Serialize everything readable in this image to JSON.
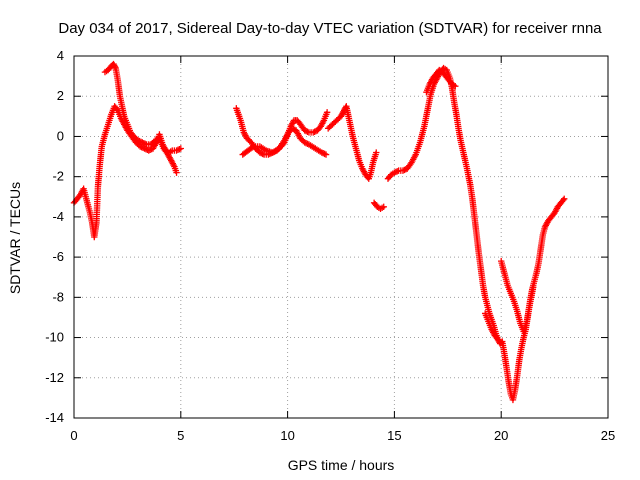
{
  "chart_data": {
    "type": "scatter",
    "title": "Day 034 of 2017, Sidereal Day-to-day VTEC variation (SDTVAR) for receiver rnna",
    "xlabel": "GPS time / hours",
    "ylabel": "SDTVAR / TECUs",
    "xlim": [
      0,
      25
    ],
    "ylim": [
      -14,
      4
    ],
    "xticks": [
      0,
      5,
      10,
      15,
      20,
      25
    ],
    "yticks": [
      -14,
      -12,
      -10,
      -8,
      -6,
      -4,
      -2,
      0,
      2,
      4
    ],
    "grid": true,
    "legend": "none",
    "marker": "plus",
    "color": "#ff0000",
    "series": [
      {
        "segments": [
          [
            [
              0.0,
              -3.3
            ],
            [
              0.15,
              -3.1
            ],
            [
              0.3,
              -2.9
            ],
            [
              0.45,
              -2.6
            ],
            [
              0.6,
              -3.2
            ],
            [
              0.75,
              -3.8
            ],
            [
              0.85,
              -4.3
            ],
            [
              0.95,
              -5.0
            ],
            [
              1.05,
              -4.3
            ],
            [
              1.12,
              -2.5
            ],
            [
              1.2,
              -1.5
            ],
            [
              1.3,
              -0.5
            ],
            [
              1.45,
              0.1
            ],
            [
              1.6,
              0.6
            ],
            [
              1.75,
              1.1
            ],
            [
              1.9,
              1.5
            ],
            [
              2.05,
              1.3
            ],
            [
              2.2,
              0.9
            ],
            [
              2.35,
              0.6
            ],
            [
              2.5,
              0.3
            ],
            [
              2.7,
              0.0
            ],
            [
              2.9,
              -0.3
            ],
            [
              3.1,
              -0.5
            ],
            [
              3.3,
              -0.6
            ],
            [
              3.5,
              -0.7
            ],
            [
              3.7,
              -0.6
            ],
            [
              3.9,
              -0.2
            ],
            [
              4.0,
              0.1
            ],
            [
              4.15,
              -0.4
            ],
            [
              4.3,
              -0.7
            ],
            [
              4.45,
              -0.8
            ],
            [
              4.6,
              -0.7
            ],
            [
              4.8,
              -0.7
            ],
            [
              5.0,
              -0.6
            ]
          ],
          [
            [
              1.45,
              3.2
            ],
            [
              1.6,
              3.3
            ],
            [
              1.75,
              3.5
            ],
            [
              1.85,
              3.6
            ],
            [
              1.95,
              3.4
            ],
            [
              2.05,
              2.8
            ],
            [
              2.15,
              2.0
            ],
            [
              2.25,
              1.5
            ],
            [
              2.35,
              1.0
            ],
            [
              2.5,
              0.6
            ],
            [
              2.65,
              0.2
            ],
            [
              2.8,
              0.0
            ],
            [
              3.0,
              -0.2
            ],
            [
              3.2,
              -0.3
            ],
            [
              3.4,
              -0.4
            ],
            [
              3.6,
              -0.4
            ],
            [
              3.8,
              -0.2
            ],
            [
              4.0,
              -0.1
            ],
            [
              4.2,
              -0.6
            ],
            [
              4.4,
              -0.9
            ],
            [
              4.55,
              -1.2
            ],
            [
              4.7,
              -1.5
            ],
            [
              4.8,
              -1.8
            ]
          ],
          [
            [
              7.6,
              1.4
            ],
            [
              7.8,
              0.8
            ],
            [
              7.95,
              0.2
            ],
            [
              8.1,
              -0.1
            ],
            [
              8.3,
              -0.3
            ],
            [
              8.5,
              -0.6
            ],
            [
              8.7,
              -0.8
            ],
            [
              8.9,
              -0.9
            ],
            [
              9.1,
              -0.9
            ],
            [
              9.3,
              -0.8
            ],
            [
              9.5,
              -0.7
            ],
            [
              9.7,
              -0.5
            ],
            [
              9.85,
              -0.3
            ],
            [
              10.0,
              0.1
            ],
            [
              10.15,
              0.5
            ],
            [
              10.3,
              0.8
            ],
            [
              10.45,
              0.8
            ],
            [
              10.6,
              0.6
            ],
            [
              10.8,
              0.3
            ],
            [
              11.0,
              0.2
            ],
            [
              11.2,
              0.2
            ],
            [
              11.4,
              0.3
            ],
            [
              11.55,
              0.5
            ],
            [
              11.7,
              0.8
            ],
            [
              11.85,
              1.2
            ]
          ],
          [
            [
              7.9,
              -0.9
            ],
            [
              8.15,
              -0.7
            ],
            [
              8.4,
              -0.5
            ],
            [
              8.7,
              -0.5
            ],
            [
              9.0,
              -0.7
            ],
            [
              9.3,
              -0.8
            ],
            [
              9.6,
              -0.6
            ],
            [
              9.85,
              -0.2
            ],
            [
              10.05,
              0.2
            ],
            [
              10.2,
              0.4
            ],
            [
              10.4,
              0.3
            ],
            [
              10.6,
              -0.1
            ],
            [
              10.8,
              -0.3
            ],
            [
              11.0,
              -0.4
            ],
            [
              11.3,
              -0.6
            ],
            [
              11.6,
              -0.8
            ],
            [
              11.8,
              -0.9
            ]
          ],
          [
            [
              11.9,
              0.4
            ],
            [
              12.1,
              0.6
            ],
            [
              12.3,
              0.8
            ],
            [
              12.5,
              1.0
            ],
            [
              12.65,
              1.3
            ],
            [
              12.75,
              1.5
            ],
            [
              12.85,
              1.0
            ],
            [
              12.95,
              0.5
            ],
            [
              13.05,
              0.0
            ],
            [
              13.2,
              -0.6
            ],
            [
              13.35,
              -1.2
            ],
            [
              13.5,
              -1.6
            ],
            [
              13.65,
              -1.9
            ],
            [
              13.8,
              -2.1
            ],
            [
              13.9,
              -1.8
            ],
            [
              14.0,
              -1.3
            ],
            [
              14.15,
              -0.8
            ]
          ],
          [
            [
              14.05,
              -3.3
            ],
            [
              14.2,
              -3.5
            ],
            [
              14.35,
              -3.6
            ],
            [
              14.5,
              -3.5
            ]
          ],
          [
            [
              14.7,
              -2.1
            ],
            [
              14.85,
              -1.9
            ],
            [
              15.0,
              -1.8
            ],
            [
              15.2,
              -1.7
            ],
            [
              15.4,
              -1.7
            ],
            [
              15.6,
              -1.6
            ],
            [
              15.8,
              -1.3
            ],
            [
              16.0,
              -0.9
            ],
            [
              16.2,
              -0.3
            ],
            [
              16.4,
              0.5
            ],
            [
              16.55,
              1.3
            ],
            [
              16.7,
              2.1
            ],
            [
              16.85,
              2.6
            ],
            [
              17.0,
              2.9
            ],
            [
              17.15,
              3.2
            ],
            [
              17.3,
              3.4
            ],
            [
              17.45,
              3.3
            ],
            [
              17.6,
              2.9
            ],
            [
              17.7,
              2.4
            ],
            [
              17.8,
              1.7
            ],
            [
              17.9,
              1.1
            ],
            [
              18.0,
              0.4
            ],
            [
              18.1,
              -0.2
            ],
            [
              18.25,
              -0.9
            ],
            [
              18.4,
              -1.6
            ],
            [
              18.55,
              -2.4
            ],
            [
              18.65,
              -3.1
            ],
            [
              18.75,
              -4.0
            ],
            [
              18.85,
              -4.9
            ],
            [
              18.95,
              -5.8
            ],
            [
              19.05,
              -6.6
            ],
            [
              19.15,
              -7.4
            ],
            [
              19.25,
              -8.0
            ],
            [
              19.35,
              -8.4
            ],
            [
              19.45,
              -8.8
            ],
            [
              19.55,
              -9.1
            ],
            [
              19.65,
              -9.4
            ],
            [
              19.75,
              -9.8
            ],
            [
              19.85,
              -10.1
            ],
            [
              19.95,
              -10.3
            ],
            [
              20.05,
              -10.2
            ],
            [
              20.15,
              -10.8
            ],
            [
              20.25,
              -11.5
            ],
            [
              20.35,
              -12.2
            ],
            [
              20.45,
              -12.8
            ],
            [
              20.55,
              -13.1
            ],
            [
              20.65,
              -12.6
            ],
            [
              20.75,
              -11.9
            ],
            [
              20.85,
              -11.1
            ],
            [
              20.95,
              -10.5
            ],
            [
              21.05,
              -10.0
            ],
            [
              21.15,
              -9.6
            ],
            [
              21.25,
              -8.9
            ],
            [
              21.35,
              -8.2
            ],
            [
              21.45,
              -7.6
            ],
            [
              21.55,
              -7.2
            ],
            [
              21.65,
              -6.8
            ],
            [
              21.75,
              -6.3
            ],
            [
              21.85,
              -5.6
            ],
            [
              21.95,
              -4.9
            ],
            [
              22.05,
              -4.5
            ],
            [
              22.2,
              -4.2
            ],
            [
              22.35,
              -4.0
            ],
            [
              22.5,
              -3.8
            ],
            [
              22.65,
              -3.5
            ],
            [
              22.8,
              -3.3
            ],
            [
              22.95,
              -3.1
            ]
          ],
          [
            [
              16.5,
              2.2
            ],
            [
              16.65,
              2.6
            ],
            [
              16.8,
              2.9
            ],
            [
              16.95,
              3.1
            ],
            [
              17.1,
              3.3
            ],
            [
              17.25,
              3.2
            ],
            [
              17.4,
              3.0
            ],
            [
              17.55,
              2.8
            ],
            [
              17.7,
              2.6
            ],
            [
              17.85,
              2.5
            ]
          ],
          [
            [
              20.0,
              -6.2
            ],
            [
              20.15,
              -6.8
            ],
            [
              20.3,
              -7.4
            ],
            [
              20.45,
              -7.8
            ],
            [
              20.6,
              -8.2
            ],
            [
              20.75,
              -8.7
            ],
            [
              20.9,
              -9.3
            ],
            [
              21.05,
              -9.7
            ],
            [
              21.2,
              -9.2
            ],
            [
              21.35,
              -8.3
            ],
            [
              21.5,
              -7.5
            ]
          ],
          [
            [
              19.25,
              -8.8
            ],
            [
              19.4,
              -9.2
            ],
            [
              19.55,
              -9.6
            ],
            [
              19.7,
              -9.9
            ],
            [
              19.85,
              -10.1
            ]
          ]
        ]
      }
    ]
  }
}
